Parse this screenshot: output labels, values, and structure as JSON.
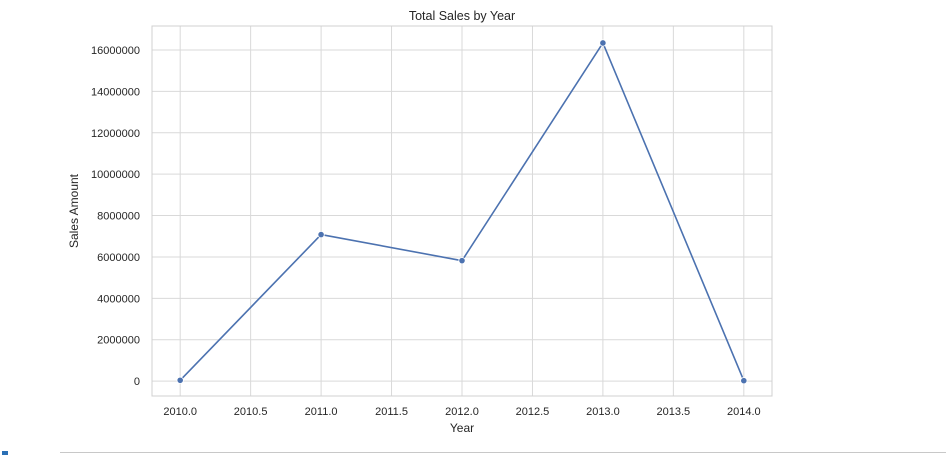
{
  "chart_data": {
    "type": "line",
    "title": "Total Sales by Year",
    "xlabel": "Year",
    "ylabel": "Sales Amount",
    "x": [
      2010,
      2011,
      2012,
      2013,
      2014
    ],
    "series": [
      {
        "values": [
          40000,
          7080000,
          5820000,
          16340000,
          20000
        ]
      }
    ],
    "xlim": [
      2009.8,
      2014.2
    ],
    "ylim": [
      -720000,
      17160000
    ],
    "xticks": [
      2010.0,
      2010.5,
      2011.0,
      2011.5,
      2012.0,
      2012.5,
      2013.0,
      2013.5,
      2014.0
    ],
    "xtick_labels": [
      "2010.0",
      "2010.5",
      "2011.0",
      "2011.5",
      "2012.0",
      "2012.5",
      "2013.0",
      "2013.5",
      "2014.0"
    ],
    "yticks": [
      0,
      2000000,
      4000000,
      6000000,
      8000000,
      10000000,
      12000000,
      14000000,
      16000000
    ],
    "ytick_labels": [
      "0",
      "2000000",
      "4000000",
      "6000000",
      "8000000",
      "10000000",
      "12000000",
      "14000000",
      "16000000"
    ],
    "grid": true,
    "markers": true,
    "colors": {
      "line": "#4c72b0",
      "grid": "#d9d9d9",
      "text": "#262626"
    }
  }
}
